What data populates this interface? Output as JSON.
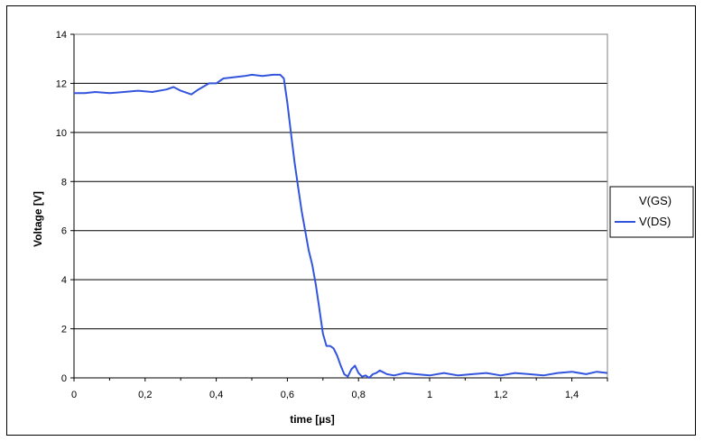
{
  "chart_data": {
    "type": "line",
    "title": "",
    "xlabel": "time [µs]",
    "ylabel": "Voltage [V]",
    "xlim": [
      0,
      1.5
    ],
    "ylim": [
      0,
      14
    ],
    "x_ticks": [
      0,
      0.2,
      0.4,
      0.6,
      0.8,
      1,
      1.2,
      1.4
    ],
    "x_tick_labels": [
      "0",
      "0,2",
      "0,4",
      "0,6",
      "0,8",
      "1",
      "1,2",
      "1,4"
    ],
    "y_ticks": [
      0,
      2,
      4,
      6,
      8,
      10,
      12,
      14
    ],
    "y_tick_labels": [
      "0",
      "2",
      "4",
      "6",
      "8",
      "10",
      "12",
      "14"
    ],
    "grid": "horizontal",
    "legend_position": "right",
    "series": [
      {
        "name": "V(GS)",
        "color": "#ffffff",
        "x": [],
        "y": []
      },
      {
        "name": "V(DS)",
        "color": "#3355dd",
        "x": [
          0,
          0.03,
          0.06,
          0.1,
          0.14,
          0.18,
          0.22,
          0.26,
          0.28,
          0.3,
          0.32,
          0.33,
          0.35,
          0.38,
          0.4,
          0.42,
          0.45,
          0.48,
          0.5,
          0.53,
          0.56,
          0.58,
          0.59,
          0.6,
          0.61,
          0.62,
          0.63,
          0.64,
          0.65,
          0.66,
          0.67,
          0.68,
          0.69,
          0.7,
          0.71,
          0.72,
          0.73,
          0.74,
          0.75,
          0.76,
          0.77,
          0.78,
          0.79,
          0.8,
          0.81,
          0.82,
          0.83,
          0.84,
          0.85,
          0.86,
          0.88,
          0.9,
          0.93,
          0.96,
          1.0,
          1.04,
          1.08,
          1.12,
          1.16,
          1.2,
          1.24,
          1.28,
          1.32,
          1.36,
          1.4,
          1.44,
          1.47,
          1.5
        ],
        "y": [
          11.6,
          11.6,
          11.65,
          11.6,
          11.65,
          11.7,
          11.65,
          11.75,
          11.85,
          11.7,
          11.6,
          11.55,
          11.75,
          12.0,
          12.0,
          12.2,
          12.25,
          12.3,
          12.35,
          12.3,
          12.35,
          12.35,
          12.2,
          11.2,
          10.0,
          8.8,
          7.8,
          6.8,
          6.0,
          5.2,
          4.6,
          3.8,
          2.8,
          1.8,
          1.3,
          1.3,
          1.2,
          0.9,
          0.5,
          0.15,
          0.05,
          0.35,
          0.5,
          0.2,
          0.05,
          0.1,
          0.0,
          0.15,
          0.2,
          0.3,
          0.15,
          0.1,
          0.2,
          0.15,
          0.1,
          0.2,
          0.1,
          0.15,
          0.2,
          0.1,
          0.2,
          0.15,
          0.1,
          0.2,
          0.25,
          0.15,
          0.25,
          0.2
        ]
      }
    ]
  }
}
